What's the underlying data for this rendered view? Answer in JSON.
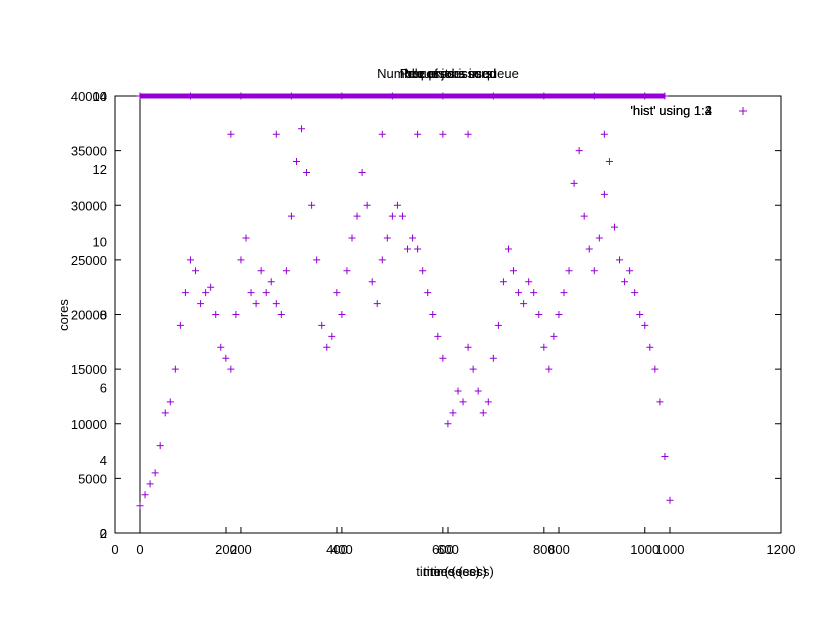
{
  "chart_data": {
    "type": "scatter",
    "note_overlay": "Several gnuplot plots were rendered on top of each other; titles, axis labels and tick labels overlap.",
    "titles": [
      "Number of jobs in queue",
      "Requests issued",
      "Processors used",
      "Idle processors"
    ],
    "legend": {
      "labels": [
        "'hist' using 1:2",
        "'hist' using 1:3",
        "'hist' using 1:4"
      ],
      "placement": "top-right"
    },
    "xlabels": [
      "time (secs)",
      "time (secs)",
      "time (secs)"
    ],
    "ylabel": "cores",
    "x_axis_a": {
      "range": [
        0,
        1200
      ],
      "ticks": [
        "0",
        "200",
        "400",
        "600",
        "800",
        "1000",
        "1200"
      ]
    },
    "x_axis_b": {
      "range": [
        0,
        1050
      ],
      "ticks": [
        "0",
        "200",
        "400",
        "600",
        "800",
        "1000"
      ]
    },
    "y_axis_a": {
      "range": [
        0,
        40000
      ],
      "ticks": [
        "0",
        "5000",
        "10000",
        "15000",
        "20000",
        "25000",
        "30000",
        "35000",
        "40000"
      ]
    },
    "y_axis_b": {
      "range": [
        2,
        14
      ],
      "ticks": [
        "2",
        "4",
        "6",
        "8",
        "10",
        "12",
        "14"
      ]
    },
    "color": "#9400d3",
    "series": [
      {
        "name": "'hist' using 1:2",
        "x": [
          0,
          10,
          20,
          30,
          40,
          50,
          60,
          70,
          80,
          90,
          100,
          110,
          120,
          130,
          140,
          150,
          160,
          170,
          180,
          190,
          200,
          210,
          220,
          230,
          240,
          250,
          260,
          270,
          280,
          290,
          300,
          310,
          320,
          330,
          340,
          350,
          360,
          370,
          380,
          390,
          400,
          410,
          420,
          430,
          440,
          450,
          460,
          470,
          480,
          490,
          500,
          510,
          520,
          530,
          540,
          550,
          560,
          570,
          580,
          590,
          600,
          610,
          620,
          630,
          640,
          650,
          660,
          670,
          680,
          690,
          700,
          710,
          720,
          730,
          740,
          750,
          760,
          770,
          780,
          790,
          800,
          810,
          820,
          830,
          840,
          850,
          860,
          870,
          880,
          890,
          900,
          910,
          920,
          930,
          940,
          950,
          960,
          970,
          980,
          990,
          1000,
          1010,
          1020,
          1030,
          1040,
          1050
        ],
        "y": [
          2500,
          3500,
          4500,
          5500,
          8000,
          11000,
          12000,
          15000,
          19000,
          22000,
          25000,
          24000,
          21000,
          22000,
          22500,
          20000,
          17000,
          16000,
          15000,
          20000,
          25000,
          27000,
          22000,
          21000,
          24000,
          22000,
          23000,
          21000,
          20000,
          24000,
          29000,
          34000,
          37000,
          33000,
          30000,
          25000,
          19000,
          17000,
          18000,
          22000,
          20000,
          24000,
          27000,
          29000,
          33000,
          30000,
          23000,
          21000,
          25000,
          27000,
          29000,
          30000,
          29000,
          26000,
          27000,
          26000,
          24000,
          22000,
          20000,
          18000,
          16000,
          10000,
          11000,
          13000,
          12000,
          17000,
          15000,
          13000,
          11000,
          12000,
          16000,
          19000,
          23000,
          26000,
          24000,
          22000,
          21000,
          23000,
          22000,
          20000,
          17000,
          15000,
          18000,
          20000,
          22000,
          24000,
          32000,
          35000,
          29000,
          26000,
          24000,
          27000,
          31000,
          34000,
          28000,
          25000,
          23000,
          24000,
          22000,
          20000,
          19000,
          17000,
          15000,
          12000,
          7000,
          3000
        ]
      },
      {
        "name": "'hist' using 1:3",
        "x": [
          180,
          270,
          480,
          550,
          600,
          650,
          920
        ],
        "y": [
          36500,
          36500,
          36500,
          36500,
          36500,
          36500,
          36500
        ]
      },
      {
        "name": "'hist' using 1:4",
        "x": [
          0,
          100,
          200,
          300,
          400,
          500,
          600,
          700,
          800,
          900,
          1000,
          1040
        ],
        "y": [
          40000,
          40000,
          40000,
          40000,
          40000,
          40000,
          40000,
          40000,
          40000,
          40000,
          40000,
          40000
        ]
      }
    ]
  }
}
